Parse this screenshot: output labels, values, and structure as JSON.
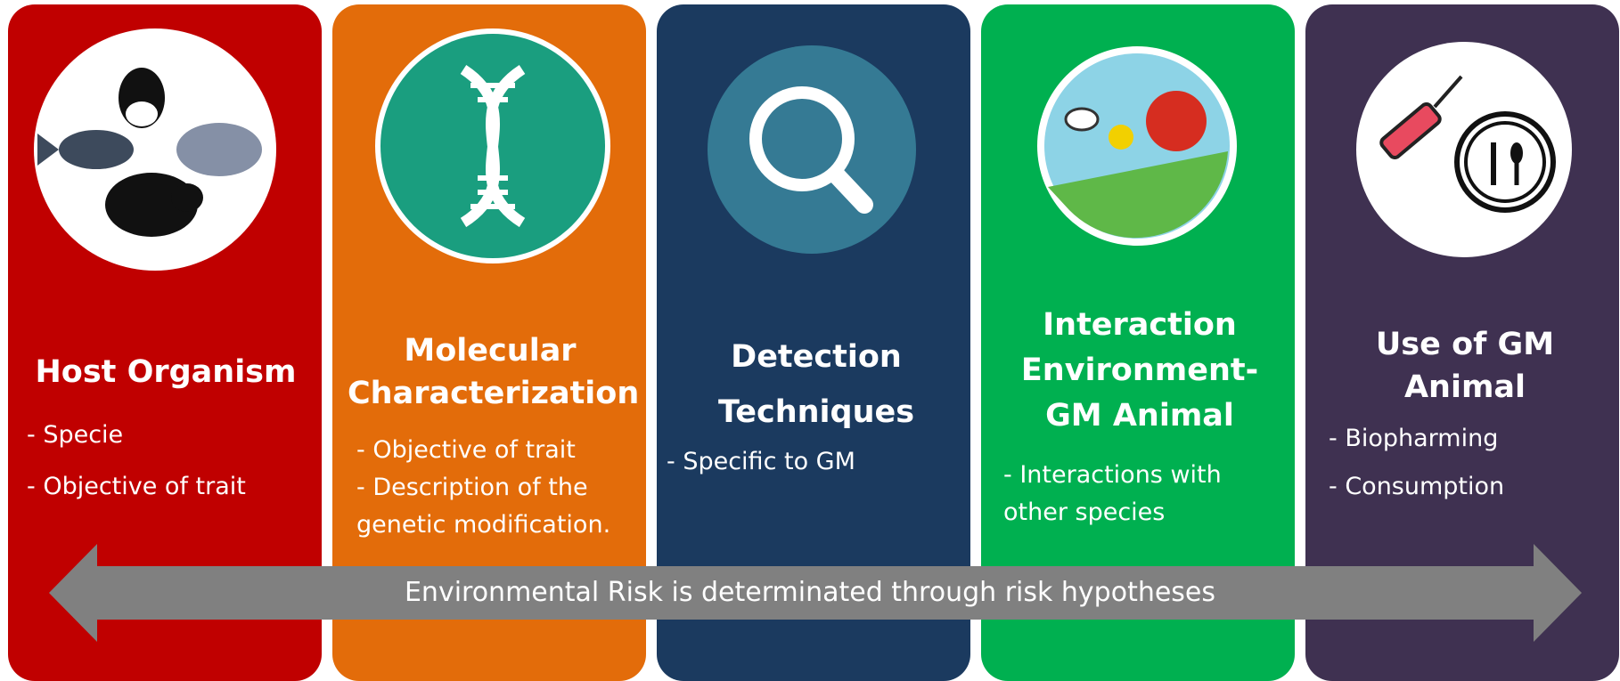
{
  "columns": [
    {
      "title": "Host Organism",
      "items": [
        "- Specie",
        "- Objective of trait"
      ]
    },
    {
      "title": "Molecular Characterization",
      "items": [
        "- Objective of trait",
        "- Description of the",
        "genetic modification."
      ]
    },
    {
      "title": "Detection Techniques",
      "items": [
        "- Specific to GM"
      ]
    },
    {
      "title": "Interaction Environment-GM Animal",
      "items": [
        "- Interactions with",
        "other species"
      ]
    },
    {
      "title": "Use of GM Animal",
      "items": [
        "- Biopharming",
        "- Consumption"
      ]
    }
  ],
  "arrow_label": "Environmental Risk is determinated through risk hypotheses"
}
